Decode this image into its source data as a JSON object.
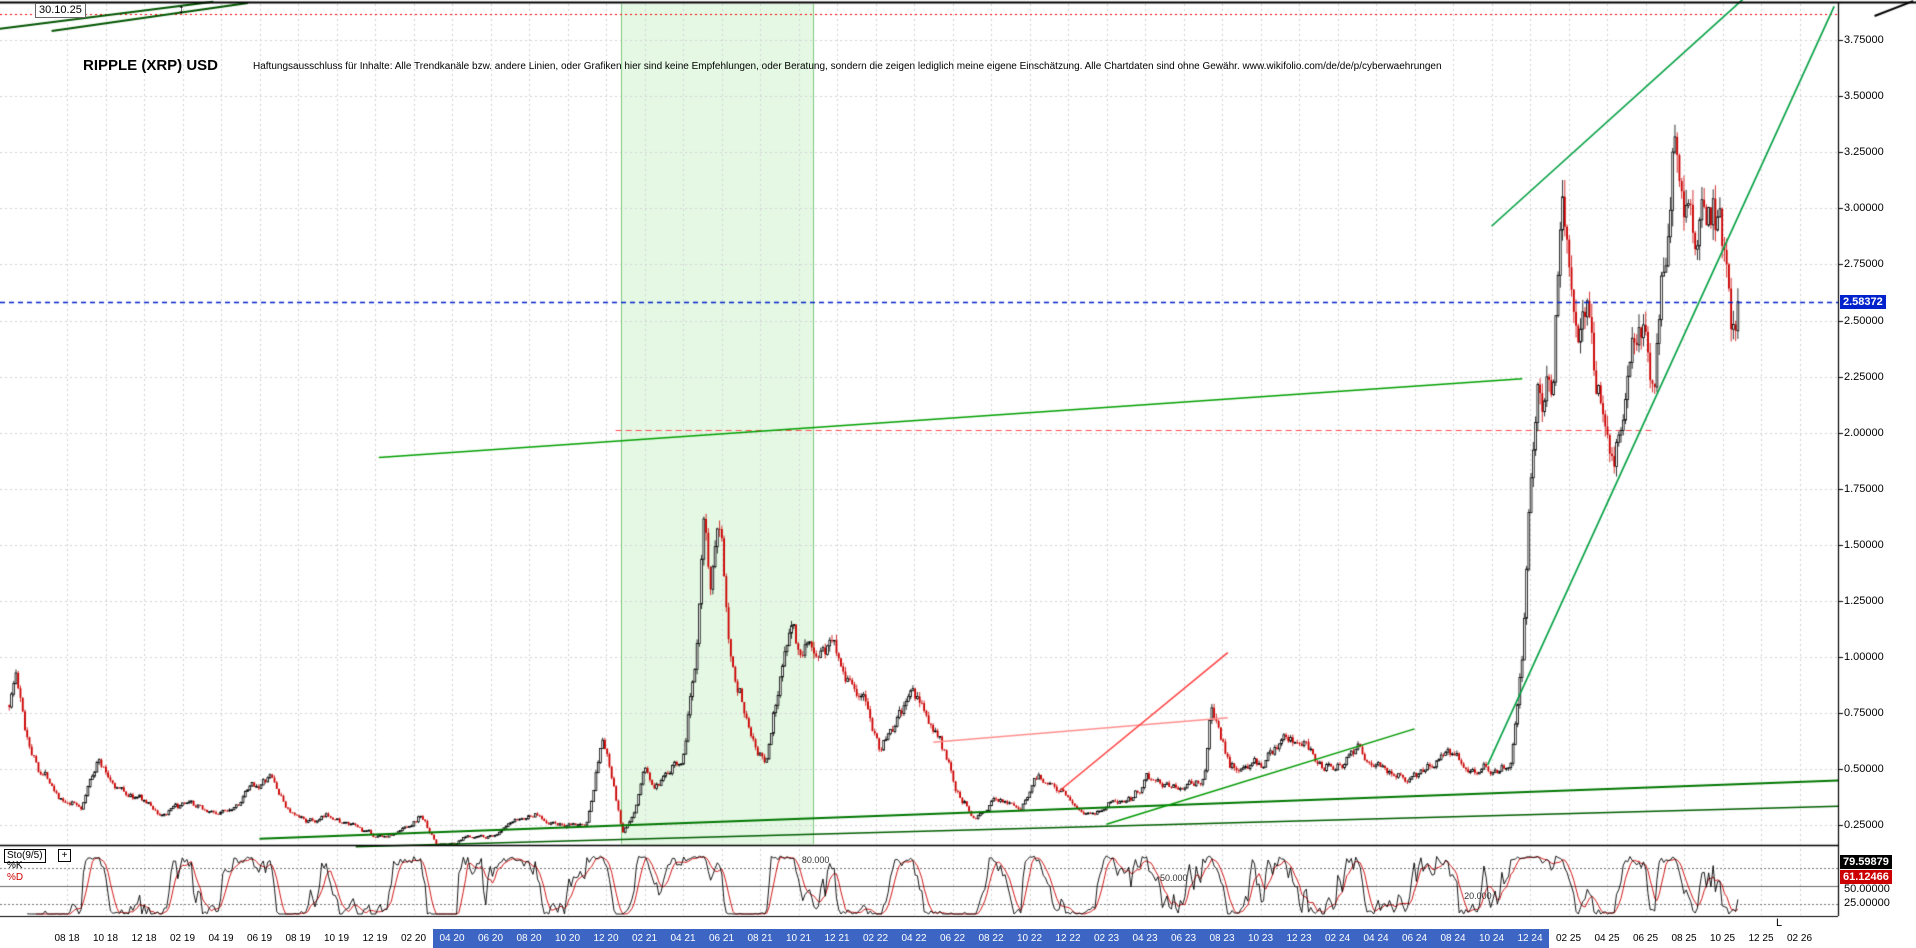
{
  "meta": {
    "title": "RIPPLE (XRP) USD",
    "disclaimer": "Haftungsausschluss für Inhalte: Alle Trendkanäle bzw. andere Linien, oder Grafiken hier sind keine Empfehlungen, oder Beratung, sondern die zeigen lediglich meine eigene Einschätzung. Alle Chartdaten sind ohne Gewähr.    www.wikifolio.com/de/de/p/cyberwaehrungen",
    "date_label": "30.10.25",
    "updown_icon": "↕",
    "corner_mark": "L"
  },
  "colors": {
    "up": "#000000",
    "down": "#cc0000",
    "grid": "#d4d4d4",
    "selection": "#3d66c4",
    "current_price_box": "#0022cc",
    "k_box": "#000000",
    "d_box": "#cc0000",
    "band": "rgba(205,243,205,0.55)",
    "band_edge": "#7fc97f",
    "k_line": "#000000",
    "d_line": "#cc0000"
  },
  "price_axis": {
    "labels": [
      "3.75000",
      "3.50000",
      "3.25000",
      "3.00000",
      "2.75000",
      "2.50000",
      "2.25000",
      "2.00000",
      "1.75000",
      "1.50000",
      "1.25000",
      "1.00000",
      "0.75000",
      "0.50000",
      "0.25000"
    ],
    "current": "2.58372",
    "current_value": 2.58372,
    "min": 0.25,
    "max": 3.75,
    "step": 0.25
  },
  "sto_panel": {
    "name": "Sto(9/5)",
    "add_button": "+",
    "k_label": "%K",
    "d_label": "%D",
    "k_value": "79.59879",
    "d_value": "61.12466",
    "k_value_num": 79.59879,
    "d_value_num": 61.12466,
    "axis_labels": [
      "50.00000",
      "25.00000"
    ],
    "levels": [
      {
        "value": 80,
        "label": "80.000",
        "label_t": 41.8,
        "style": "dotted"
      },
      {
        "value": 50,
        "label": "50.000",
        "label_t": 60.4,
        "style": "solid"
      },
      {
        "value": 20,
        "label": "20.000",
        "label_t": 76.2,
        "style": "dotted"
      }
    ]
  },
  "time_axis": {
    "labels": [
      {
        "text": "08 18",
        "highlight": false
      },
      {
        "text": "10 18",
        "highlight": false
      },
      {
        "text": "12 18",
        "highlight": false
      },
      {
        "text": "02 19",
        "highlight": false
      },
      {
        "text": "04 19",
        "highlight": false
      },
      {
        "text": "06 19",
        "highlight": false
      },
      {
        "text": "08 19",
        "highlight": false
      },
      {
        "text": "10 19",
        "highlight": false
      },
      {
        "text": "12 19",
        "highlight": false
      },
      {
        "text": "02 20",
        "highlight": false
      },
      {
        "text": "04 20",
        "highlight": true
      },
      {
        "text": "06 20",
        "highlight": true
      },
      {
        "text": "08 20",
        "highlight": true
      },
      {
        "text": "10 20",
        "highlight": true
      },
      {
        "text": "12 20",
        "highlight": true
      },
      {
        "text": "02 21",
        "highlight": true
      },
      {
        "text": "04 21",
        "highlight": true
      },
      {
        "text": "06 21",
        "highlight": true
      },
      {
        "text": "08 21",
        "highlight": true
      },
      {
        "text": "10 21",
        "highlight": true
      },
      {
        "text": "12 21",
        "highlight": true
      },
      {
        "text": "02 22",
        "highlight": true
      },
      {
        "text": "04 22",
        "highlight": true
      },
      {
        "text": "06 22",
        "highlight": true
      },
      {
        "text": "08 22",
        "highlight": true
      },
      {
        "text": "10 22",
        "highlight": true
      },
      {
        "text": "12 22",
        "highlight": true
      },
      {
        "text": "02 23",
        "highlight": true
      },
      {
        "text": "04 23",
        "highlight": true
      },
      {
        "text": "06 23",
        "highlight": true
      },
      {
        "text": "08 23",
        "highlight": true
      },
      {
        "text": "10 23",
        "highlight": true
      },
      {
        "text": "12 23",
        "highlight": true
      },
      {
        "text": "02 24",
        "highlight": true
      },
      {
        "text": "04 24",
        "highlight": true
      },
      {
        "text": "06 24",
        "highlight": true
      },
      {
        "text": "08 24",
        "highlight": true
      },
      {
        "text": "10 24",
        "highlight": true
      },
      {
        "text": "12 24",
        "highlight": true
      },
      {
        "text": "02 25",
        "highlight": false
      },
      {
        "text": "04 25",
        "highlight": false
      },
      {
        "text": "06 25",
        "highlight": false
      },
      {
        "text": "08 25",
        "highlight": false
      },
      {
        "text": "10 25",
        "highlight": false
      },
      {
        "text": "12 25",
        "highlight": false
      },
      {
        "text": "02 26",
        "highlight": false
      }
    ]
  },
  "chart_data": {
    "type": "candlestick",
    "title": "RIPPLE (XRP) USD",
    "t_unit": "months since 2018-05-01",
    "ylim": [
      0.25,
      3.75
    ],
    "last_close": 2.58372,
    "anchors": [
      [
        0,
        0.8
      ],
      [
        0.35,
        0.93
      ],
      [
        0.8,
        0.68
      ],
      [
        1.5,
        0.52
      ],
      [
        2.2,
        0.46
      ],
      [
        3,
        0.34
      ],
      [
        3.8,
        0.33
      ],
      [
        4.6,
        0.56
      ],
      [
        5.1,
        0.47
      ],
      [
        6,
        0.4
      ],
      [
        7,
        0.36
      ],
      [
        7.8,
        0.3
      ],
      [
        9,
        0.32
      ],
      [
        10,
        0.31
      ],
      [
        11,
        0.3
      ],
      [
        12.3,
        0.4
      ],
      [
        13.6,
        0.46
      ],
      [
        14.3,
        0.34
      ],
      [
        15,
        0.27
      ],
      [
        16,
        0.26
      ],
      [
        16.8,
        0.29
      ],
      [
        17.8,
        0.24
      ],
      [
        19,
        0.195
      ],
      [
        20.3,
        0.22
      ],
      [
        21.4,
        0.3
      ],
      [
        22.3,
        0.15
      ],
      [
        23.2,
        0.175
      ],
      [
        24,
        0.2
      ],
      [
        25,
        0.205
      ],
      [
        26.3,
        0.25
      ],
      [
        27.3,
        0.3
      ],
      [
        28.2,
        0.27
      ],
      [
        29,
        0.24
      ],
      [
        30,
        0.25
      ],
      [
        30.8,
        0.66
      ],
      [
        31.2,
        0.5
      ],
      [
        31.85,
        0.21
      ],
      [
        32.4,
        0.27
      ],
      [
        33,
        0.5
      ],
      [
        33.5,
        0.41
      ],
      [
        34.2,
        0.44
      ],
      [
        35,
        0.56
      ],
      [
        35.7,
        1.05
      ],
      [
        36.1,
        1.83
      ],
      [
        36.4,
        1.3
      ],
      [
        37,
        1.52
      ],
      [
        37.5,
        1.05
      ],
      [
        38.1,
        0.84
      ],
      [
        38.8,
        0.66
      ],
      [
        39.3,
        0.54
      ],
      [
        40.1,
        0.96
      ],
      [
        40.7,
        1.25
      ],
      [
        41.2,
        0.98
      ],
      [
        42,
        1.03
      ],
      [
        42.8,
        1.08
      ],
      [
        43.6,
        0.95
      ],
      [
        44.3,
        0.82
      ],
      [
        45.2,
        0.61
      ],
      [
        46.1,
        0.7
      ],
      [
        46.9,
        0.8
      ],
      [
        47.6,
        0.74
      ],
      [
        48.3,
        0.62
      ],
      [
        49.2,
        0.41
      ],
      [
        50.1,
        0.31
      ],
      [
        51,
        0.35
      ],
      [
        51.8,
        0.37
      ],
      [
        52.6,
        0.33
      ],
      [
        53.3,
        0.48
      ],
      [
        54.2,
        0.46
      ],
      [
        55.2,
        0.38
      ],
      [
        55.7,
        0.33
      ],
      [
        56.5,
        0.34
      ],
      [
        57.3,
        0.36
      ],
      [
        58.3,
        0.38
      ],
      [
        59.1,
        0.46
      ],
      [
        60.2,
        0.44
      ],
      [
        61.2,
        0.42
      ],
      [
        62.1,
        0.47
      ],
      [
        62.45,
        0.8
      ],
      [
        62.8,
        0.68
      ],
      [
        63.4,
        0.53
      ],
      [
        64.2,
        0.5
      ],
      [
        65.1,
        0.52
      ],
      [
        66.1,
        0.6
      ],
      [
        67.1,
        0.62
      ],
      [
        68.2,
        0.53
      ],
      [
        69.2,
        0.55
      ],
      [
        70.1,
        0.61
      ],
      [
        71.1,
        0.52
      ],
      [
        72.2,
        0.49
      ],
      [
        73.1,
        0.47
      ],
      [
        74.2,
        0.57
      ],
      [
        75.2,
        0.55
      ],
      [
        76.1,
        0.53
      ],
      [
        77.1,
        0.52
      ],
      [
        78,
        0.54
      ],
      [
        78.6,
        1.05
      ],
      [
        79,
        1.85
      ],
      [
        79.4,
        2.4
      ],
      [
        79.7,
        2.28
      ],
      [
        80.2,
        2.32
      ],
      [
        80.7,
        3.22
      ],
      [
        81.1,
        2.92
      ],
      [
        81.5,
        2.42
      ],
      [
        82,
        2.55
      ],
      [
        82.6,
        2.22
      ],
      [
        83.3,
        1.86
      ],
      [
        83.8,
        2.05
      ],
      [
        84.3,
        2.32
      ],
      [
        84.9,
        2.28
      ],
      [
        85.5,
        2.12
      ],
      [
        86.1,
        2.8
      ],
      [
        86.45,
        3.52
      ],
      [
        86.9,
        3.05
      ],
      [
        87.4,
        2.92
      ],
      [
        88,
        2.83
      ],
      [
        88.5,
        2.96
      ],
      [
        89,
        2.82
      ],
      [
        89.4,
        2.42
      ],
      [
        89.8,
        2.58
      ]
    ],
    "generator": {
      "count": 770,
      "t_end": 89.8,
      "seed": 1337,
      "noise": 0.09,
      "decay": 0.8,
      "wick": 0.025,
      "min_price": 0.17,
      "max_price": 3.82
    },
    "stochastic": {
      "k_period": 9,
      "d_period": 5,
      "k_last": 79.59879,
      "d_last": 61.12466
    },
    "overlays": {
      "band": {
        "t1": 31.8,
        "t2": 41.75
      },
      "hlines": [
        {
          "name": "top-resistance-dotted",
          "p": 3.866,
          "color": "#ff0000",
          "dash": [
            2,
            3
          ],
          "t1": -0.48,
          "t2": 95,
          "w": 1
        },
        {
          "name": "resistance-2.0-dashed",
          "p": 2.01,
          "color": "#ff5050",
          "dash": [
            6,
            4
          ],
          "t1": 31.5,
          "t2": 85.3,
          "w": 1.2
        },
        {
          "name": "current-price-line",
          "p": 2.58372,
          "color": "#0022cc",
          "dash": [
            5,
            4
          ],
          "t1": -0.48,
          "t2": 95,
          "w": 1.3
        }
      ],
      "trendlines": [
        {
          "name": "long-support-trendline",
          "t1": 19.2,
          "p1": 1.89,
          "t2": 78.6,
          "p2": 2.24,
          "color": "#00a000",
          "w": 1.5
        },
        {
          "name": "lower-channel-line-1",
          "t1": 13,
          "p1": 0.19,
          "t2": 95,
          "p2": 0.45,
          "color": "#007700",
          "w": 2
        },
        {
          "name": "lower-channel-line-2",
          "t1": 18,
          "p1": 0.155,
          "t2": 95,
          "p2": 0.335,
          "color": "#005e00",
          "w": 1.5
        },
        {
          "name": "mid-support-line",
          "t1": 57,
          "p1": 0.255,
          "t2": 73,
          "p2": 0.68,
          "color": "#009900",
          "w": 1.5
        },
        {
          "name": "steep-channel-upper",
          "t1": 77,
          "p1": 2.92,
          "t2": 90.3,
          "p2": 3.95,
          "color": "#00a040",
          "w": 1.6
        },
        {
          "name": "steep-channel-lower",
          "t1": 76.8,
          "p1": 0.52,
          "t2": 94.8,
          "p2": 3.9,
          "color": "#00a040",
          "w": 1.6
        },
        {
          "name": "red-wedge-upper",
          "t1": 48,
          "p1": 0.62,
          "t2": 63.3,
          "p2": 0.73,
          "color": "#ff9090",
          "w": 1.5
        },
        {
          "name": "red-wedge-lower",
          "t1": 54.5,
          "p1": 0.4,
          "t2": 63.3,
          "p2": 1.02,
          "color": "#ff4040",
          "w": 1.5
        },
        {
          "name": "corner-line-1",
          "t1": -0.5,
          "p1": 3.8,
          "t2": 10.6,
          "p2": 3.92,
          "color": "#005500",
          "w": 2
        },
        {
          "name": "corner-line-2",
          "t1": 2.2,
          "p1": 3.79,
          "t2": 12.4,
          "p2": 3.915,
          "color": "#005500",
          "w": 2
        },
        {
          "name": "corner-line-top-right",
          "t1": 96.9,
          "p1": 3.857,
          "t2": 98.9,
          "p2": 3.923,
          "color": "#000000",
          "w": 2
        }
      ]
    }
  }
}
